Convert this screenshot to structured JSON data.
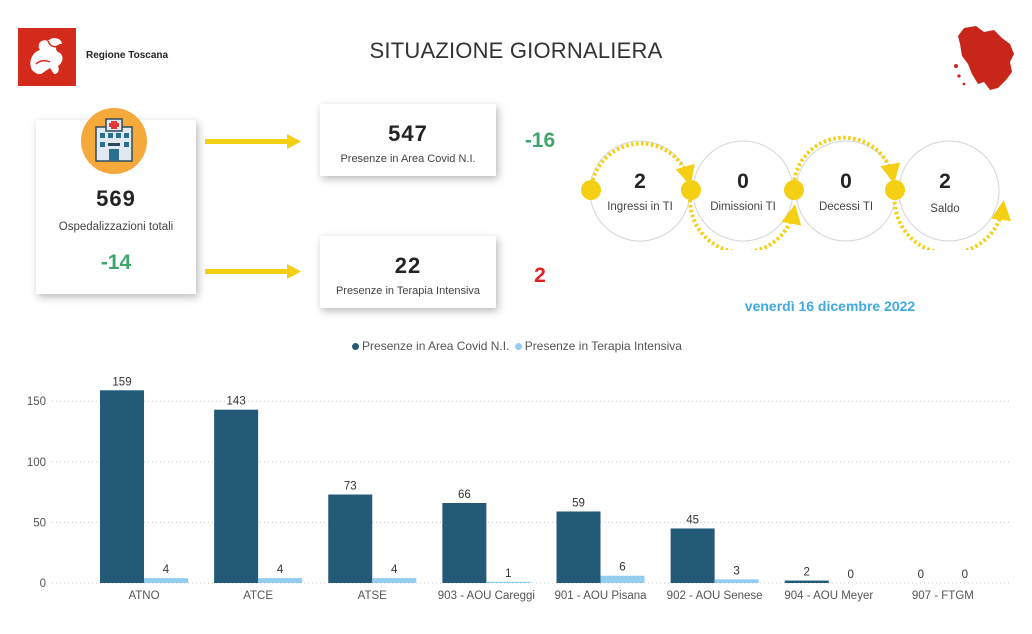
{
  "header": {
    "brand": "Regione Toscana",
    "title": "SITUAZIONE GIORNALIERA",
    "logo_icon": "pegasus-logo-icon",
    "map_icon": "tuscany-map-icon"
  },
  "total": {
    "icon": "hospital-icon",
    "value": "569",
    "label": "Ospedalizzazioni totali",
    "delta": "-14"
  },
  "covid_area": {
    "value": "547",
    "label": "Presenze in Area Covid N.I.",
    "delta": "-16"
  },
  "intensive_care": {
    "value": "22",
    "label": "Presenze in Terapia Intensiva",
    "delta": "2"
  },
  "flow": [
    {
      "value": "2",
      "label": "Ingressi in TI"
    },
    {
      "value": "0",
      "label": "Dimissioni TI"
    },
    {
      "value": "0",
      "label": "Decessi TI"
    },
    {
      "value": "2",
      "label": "Saldo"
    }
  ],
  "date": "venerdì 16 dicembre 2022",
  "colors": {
    "covid": "#225a78",
    "ti": "#93cdf0",
    "green": "#3fa56d",
    "red": "#e02222",
    "arrow": "#f5cf14",
    "date": "#3fa9e0"
  },
  "chart_data": {
    "type": "bar",
    "categories": [
      "ATNO",
      "ATCE",
      "ATSE",
      "903 - AOU Careggi",
      "901 - AOU Pisana",
      "902 - AOU Senese",
      "904 - AOU Meyer",
      "907 - FTGM"
    ],
    "series": [
      {
        "name": "Presenze in Area Covid N.I.",
        "values": [
          159,
          143,
          73,
          66,
          59,
          45,
          2,
          0
        ]
      },
      {
        "name": "Presenze in Terapia Intensiva",
        "values": [
          4,
          4,
          4,
          1,
          6,
          3,
          0,
          0
        ]
      }
    ],
    "yticks": [
      0,
      50,
      100,
      150
    ],
    "ylim": [
      0,
      165
    ],
    "legend_position": "top-center",
    "grid": true
  }
}
